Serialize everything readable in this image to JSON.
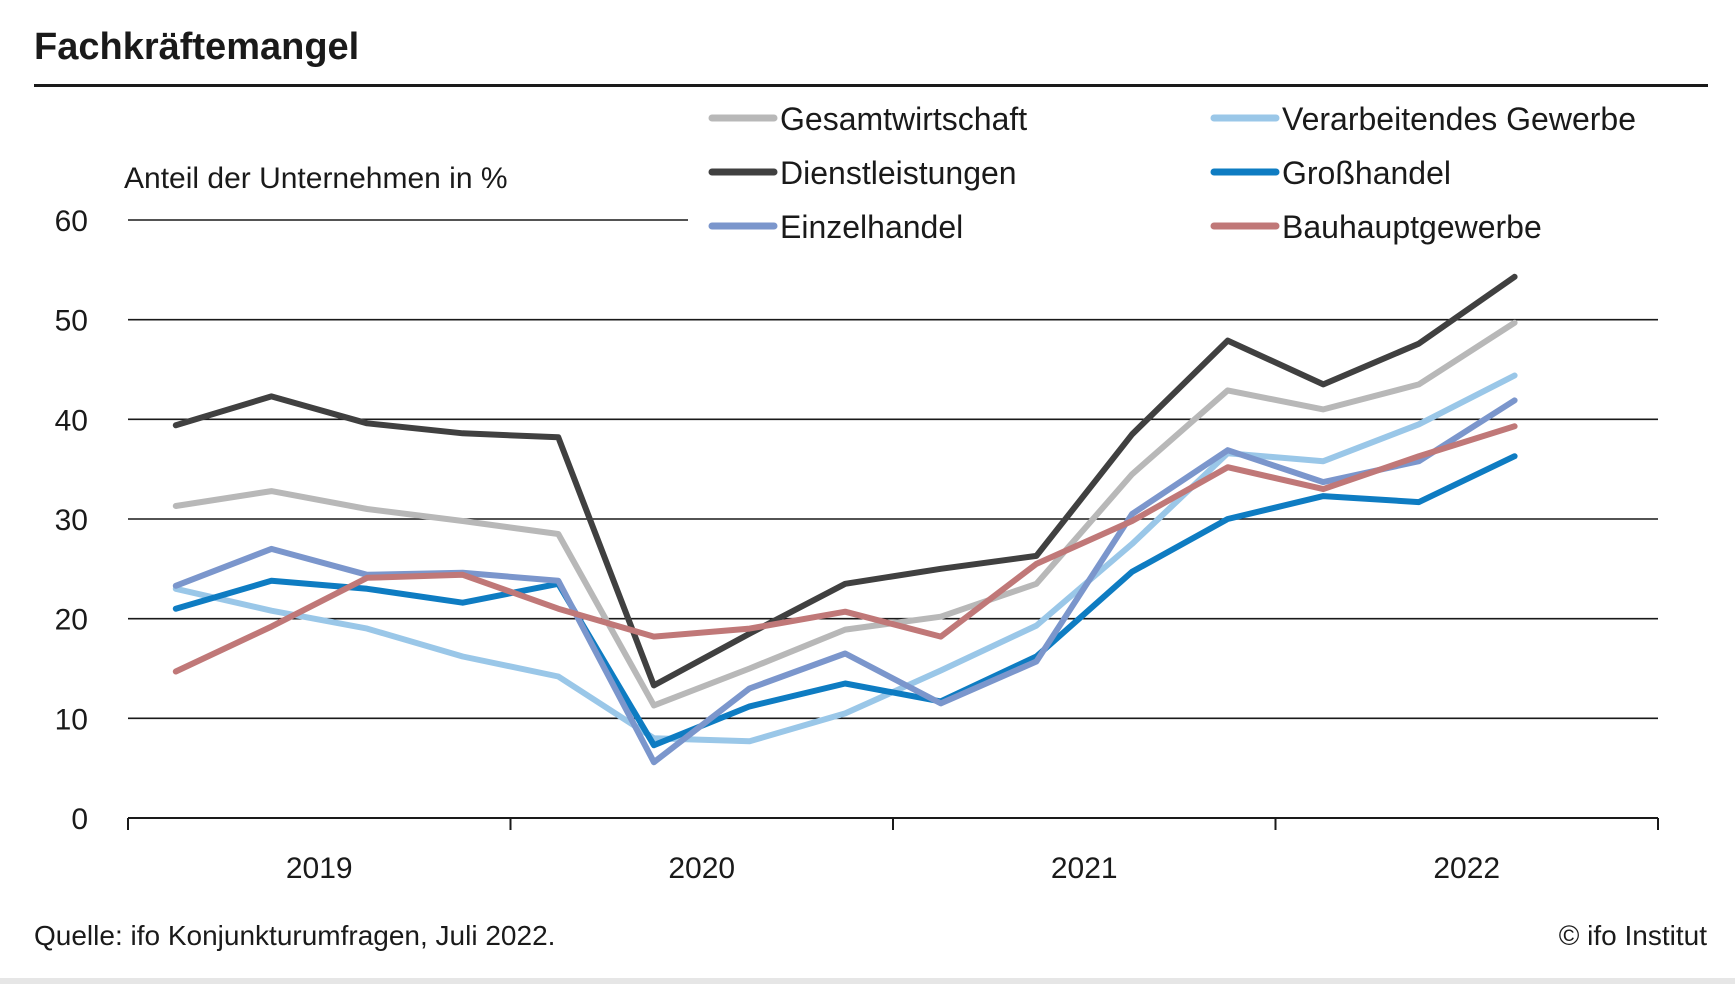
{
  "header": {
    "title": "Fachkräftemangel"
  },
  "footer": {
    "source": "Quelle: ifo Konjunkturumfragen, Juli 2022.",
    "copyright": "© ifo Institut"
  },
  "chart_data": {
    "type": "line",
    "title": "Fachkräftemangel",
    "ylabel": "Anteil der Unternehmen in %",
    "xlabel": "",
    "ylim": [
      0,
      60
    ],
    "yticks": [
      0,
      10,
      20,
      30,
      40,
      50,
      60
    ],
    "grid": true,
    "legend_position": "top-right",
    "x": [
      "2019-Q1",
      "2019-Q2",
      "2019-Q3",
      "2019-Q4",
      "2020-Q1",
      "2020-Q2",
      "2020-Q3",
      "2020-Q4",
      "2021-Q1",
      "2021-Q2",
      "2021-Q3",
      "2021-Q4",
      "2022-Q1",
      "2022-Q2",
      "2022-Q3"
    ],
    "year_labels": [
      "2019",
      "2020",
      "2021",
      "2022"
    ],
    "series": [
      {
        "name": "Gesamtwirtschaft",
        "color": "#b8b8b8",
        "values": [
          31.3,
          32.8,
          31.0,
          29.8,
          28.5,
          11.3,
          15.0,
          18.9,
          20.2,
          23.5,
          34.5,
          42.9,
          41.0,
          43.5,
          49.7
        ]
      },
      {
        "name": "Verarbeitendes Gewerbe",
        "color": "#9ac7e8",
        "values": [
          23.0,
          20.8,
          19.0,
          16.2,
          14.2,
          8.0,
          7.7,
          10.5,
          14.8,
          19.3,
          27.5,
          36.6,
          35.8,
          39.5,
          44.4
        ]
      },
      {
        "name": "Dienstleistungen",
        "color": "#404040",
        "values": [
          39.4,
          42.3,
          39.6,
          38.6,
          38.2,
          13.3,
          18.5,
          23.5,
          25.0,
          26.3,
          38.5,
          47.9,
          43.5,
          47.6,
          54.3
        ]
      },
      {
        "name": "Großhandel",
        "color": "#0e7cc2",
        "values": [
          21.0,
          23.8,
          23.0,
          21.6,
          23.5,
          7.3,
          11.2,
          13.5,
          11.7,
          16.2,
          24.7,
          30.0,
          32.3,
          31.7,
          36.3
        ]
      },
      {
        "name": "Einzelhandel",
        "color": "#7b96cc",
        "values": [
          23.3,
          27.0,
          24.4,
          24.6,
          23.8,
          5.6,
          13.0,
          16.5,
          11.5,
          15.7,
          30.5,
          36.9,
          33.7,
          35.8,
          41.9
        ]
      },
      {
        "name": "Bauhauptgewerbe",
        "color": "#c07878",
        "values": [
          14.7,
          19.2,
          24.1,
          24.4,
          21.0,
          18.2,
          19.0,
          20.7,
          18.2,
          25.5,
          29.8,
          35.2,
          33.0,
          36.3,
          39.3
        ]
      }
    ]
  }
}
